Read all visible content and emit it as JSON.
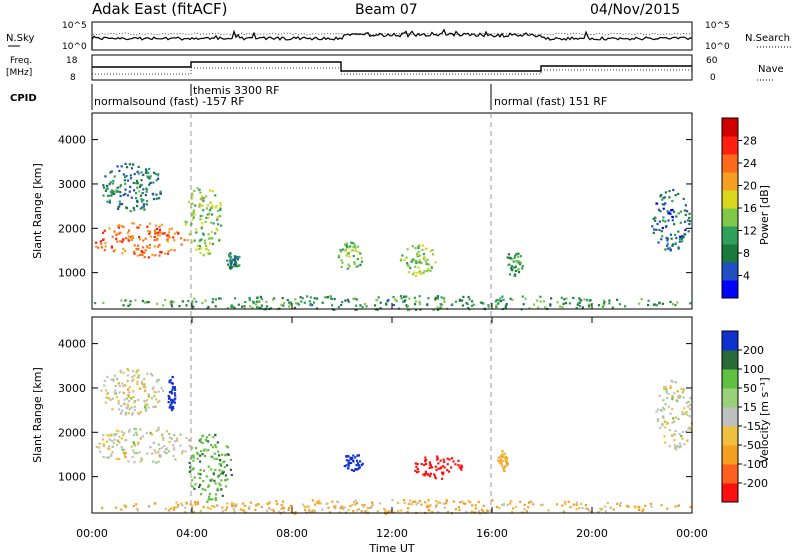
{
  "header": {
    "title": "Adak East (fitACF)",
    "beam": "Beam 07",
    "date": "04/Nov/2015"
  },
  "panels": {
    "nsky": {
      "label": "N.Sky",
      "right_label": "N.Search",
      "ticks": [
        "10^5",
        "10^0"
      ]
    },
    "freq": {
      "label_line1": "Freq.",
      "label_line2": "[MHz]",
      "left_ticks": [
        "18",
        "8"
      ],
      "right_label": "Nave",
      "right_ticks": [
        "60",
        "0"
      ]
    },
    "cpid": {
      "label": "CPID",
      "modes": [
        "normalsound (fast) -157 RF",
        "themis 3300 RF",
        "normal (fast) 151 RF"
      ]
    }
  },
  "axes": {
    "ylabel": "Slant Range [km]",
    "yticks": [
      "4000",
      "3000",
      "2000",
      "1000"
    ],
    "xlabel": "Time UT",
    "xticks": [
      "00:00",
      "04:00",
      "08:00",
      "12:00",
      "16:00",
      "20:00",
      "00:00"
    ]
  },
  "colorbars": {
    "power": {
      "label": "Power [dB]",
      "ticks": [
        "28",
        "24",
        "20",
        "16",
        "12",
        "8",
        "4"
      ]
    },
    "velocity": {
      "label": "Velocity [m s⁻¹]",
      "ticks": [
        "200",
        "100",
        "50",
        "15",
        "-15",
        "-50",
        "-100",
        "-200"
      ]
    }
  },
  "chart_data": [
    {
      "type": "heatmap",
      "title": "Power",
      "xlabel": "Time UT",
      "ylabel": "Slant Range [km]",
      "xlim": [
        0,
        24
      ],
      "ylim": [
        180,
        4600
      ],
      "colorbar": {
        "label": "Power [dB]",
        "range": [
          0,
          30
        ]
      },
      "blobs": [
        {
          "t": [
            0.0,
            3.8
          ],
          "r": [
            1350,
            2150
          ],
          "power": 22
        },
        {
          "t": [
            0.3,
            2.8
          ],
          "r": [
            2400,
            3500
          ],
          "power": 8
        },
        {
          "t": [
            3.7,
            5.2
          ],
          "r": [
            1400,
            3000
          ],
          "power": 14
        },
        {
          "t": [
            5.3,
            5.9
          ],
          "r": [
            1100,
            1500
          ],
          "power": 8
        },
        {
          "t": [
            9.8,
            10.8
          ],
          "r": [
            1050,
            1700
          ],
          "power": 12
        },
        {
          "t": [
            12.2,
            13.8
          ],
          "r": [
            950,
            1650
          ],
          "power": 14
        },
        {
          "t": [
            16.5,
            17.2
          ],
          "r": [
            950,
            1500
          ],
          "power": 10
        },
        {
          "t": [
            22.3,
            23.9
          ],
          "r": [
            1500,
            2900
          ],
          "power": 6
        },
        {
          "t": [
            0.0,
            24.0
          ],
          "r": [
            180,
            500
          ],
          "power": 10
        }
      ]
    },
    {
      "type": "heatmap",
      "title": "Velocity",
      "xlabel": "Time UT",
      "ylabel": "Slant Range [km]",
      "xlim": [
        0,
        24
      ],
      "ylim": [
        180,
        4600
      ],
      "colorbar": {
        "label": "Velocity [m s⁻¹]",
        "range": [
          -200,
          200
        ]
      },
      "blobs": [
        {
          "t": [
            0.0,
            4.0
          ],
          "r": [
            1300,
            2150
          ],
          "velocity": 0
        },
        {
          "t": [
            0.3,
            2.8
          ],
          "r": [
            2400,
            3500
          ],
          "velocity": 0
        },
        {
          "t": [
            3.8,
            5.6
          ],
          "r": [
            400,
            2000
          ],
          "velocity": 60
        },
        {
          "t": [
            3.0,
            3.3
          ],
          "r": [
            2500,
            3300
          ],
          "velocity": 200
        },
        {
          "t": [
            10.0,
            10.8
          ],
          "r": [
            1150,
            1550
          ],
          "velocity": 200
        },
        {
          "t": [
            12.8,
            14.8
          ],
          "r": [
            950,
            1500
          ],
          "velocity": -200
        },
        {
          "t": [
            16.2,
            16.6
          ],
          "r": [
            1100,
            1600
          ],
          "velocity": -50
        },
        {
          "t": [
            22.5,
            24.0
          ],
          "r": [
            1600,
            3200
          ],
          "velocity": 0
        },
        {
          "t": [
            0.0,
            24.0
          ],
          "r": [
            180,
            500
          ],
          "velocity": -30
        }
      ]
    }
  ]
}
